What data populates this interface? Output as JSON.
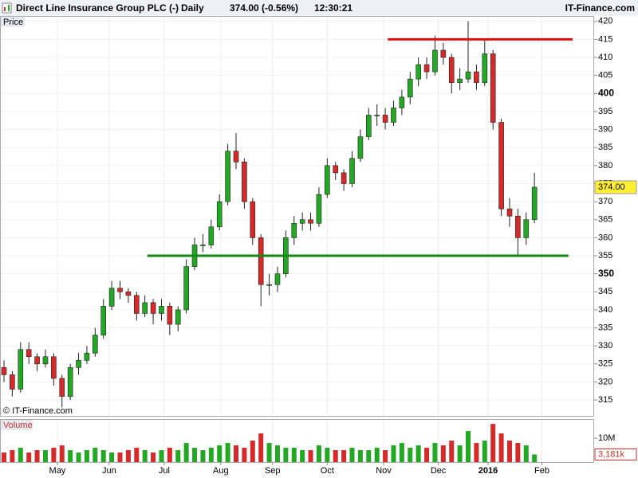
{
  "chart_data": {
    "type": "candlestick",
    "title": "Direct Line Insurance Group PLC (-)",
    "period": "Daily",
    "quote": "374.00 (-0.56%)",
    "time": "12:30:21",
    "brand": "IT-Finance.com",
    "watermark": "© IT-Finance.com",
    "price_label": "Price",
    "volume_label": "Volume",
    "up_color": "#22a822",
    "down_color": "#d42a2a",
    "x": [
      0,
      1,
      2,
      3,
      4,
      5,
      6,
      7,
      8,
      9,
      10,
      11,
      12,
      13,
      14,
      15,
      16,
      17,
      18,
      19,
      20,
      21,
      22,
      23,
      24,
      25,
      26,
      27,
      28,
      29,
      30,
      31,
      32,
      33,
      34,
      35,
      36,
      37,
      38,
      39,
      40,
      41,
      42,
      43,
      44,
      45,
      46,
      47,
      48,
      49,
      50,
      51,
      52,
      53,
      54,
      55,
      56,
      57,
      58,
      59,
      60,
      61,
      62,
      63,
      64
    ],
    "open": [
      324,
      322,
      318,
      329,
      327,
      325,
      327,
      321,
      316,
      324,
      326,
      328,
      333,
      341,
      346,
      345,
      344,
      339,
      342,
      339,
      341,
      336,
      340,
      352,
      358,
      358,
      363,
      370,
      384,
      381,
      370,
      360,
      347,
      347,
      350,
      360,
      364,
      365,
      364,
      372,
      380,
      378,
      375,
      382,
      388,
      394,
      394,
      392,
      396,
      399,
      404,
      408,
      406,
      412,
      410,
      403,
      404,
      406,
      403,
      411,
      392,
      368,
      366,
      360,
      365
    ],
    "high": [
      326,
      323,
      331,
      331,
      328,
      329,
      328,
      322,
      325,
      328,
      330,
      335,
      343,
      348,
      348,
      346,
      345,
      344,
      343,
      343,
      342,
      341,
      354,
      360,
      361,
      365,
      372,
      386,
      389,
      382,
      371,
      361,
      350,
      352,
      362,
      366,
      367,
      367,
      374,
      382,
      381,
      379,
      384,
      390,
      396,
      397,
      396,
      398,
      401,
      406,
      410,
      410,
      416,
      414,
      411,
      407,
      420,
      408,
      415,
      412,
      393,
      371,
      368,
      367,
      378
    ],
    "low": [
      320,
      316,
      317,
      325,
      323,
      324,
      319,
      313,
      315,
      322,
      325,
      327,
      332,
      340,
      343,
      342,
      337,
      338,
      336,
      337,
      333,
      334,
      339,
      351,
      356,
      357,
      362,
      369,
      379,
      368,
      358,
      341,
      344,
      345,
      349,
      358,
      362,
      362,
      363,
      371,
      376,
      373,
      374,
      381,
      387,
      391,
      390,
      391,
      394,
      397,
      402,
      404,
      405,
      408,
      400,
      401,
      403,
      401,
      402,
      390,
      366,
      363,
      355,
      358,
      364
    ],
    "close": [
      322,
      318,
      329,
      327,
      325,
      327,
      321,
      316,
      324,
      326,
      328,
      333,
      341,
      346,
      345,
      344,
      339,
      342,
      339,
      341,
      336,
      340,
      352,
      358,
      358,
      363,
      370,
      384,
      381,
      370,
      360,
      347,
      347,
      350,
      360,
      364,
      365,
      364,
      372,
      380,
      378,
      375,
      382,
      388,
      394,
      394,
      392,
      396,
      399,
      404,
      408,
      406,
      412,
      410,
      403,
      404,
      406,
      403,
      411,
      392,
      368,
      366,
      360,
      365,
      374
    ],
    "volume": [
      4,
      5,
      6,
      4,
      5,
      5,
      6,
      7,
      5,
      4,
      5,
      6,
      5,
      4,
      4,
      5,
      6,
      5,
      4,
      5,
      6,
      5,
      8,
      6,
      5,
      6,
      7,
      8,
      7,
      6,
      9,
      12,
      8,
      7,
      6,
      6,
      5,
      5,
      7,
      6,
      5,
      5,
      6,
      5,
      5,
      6,
      5,
      7,
      8,
      6,
      7,
      6,
      8,
      7,
      9,
      7,
      13,
      8,
      9,
      16,
      12,
      9,
      8,
      7,
      3.181
    ],
    "last": {
      "value": 374,
      "label": "374.00"
    },
    "last_volume": {
      "value": 3.181,
      "label": "3,181k"
    },
    "xlim": [
      -0.48,
      71.2
    ],
    "xticks": [
      {
        "value": 6.44,
        "label": "May"
      },
      {
        "value": 12.69,
        "label": "Jun"
      },
      {
        "value": 19.33,
        "label": "Jul"
      },
      {
        "value": 26.15,
        "label": "Aug"
      },
      {
        "value": 32.4,
        "label": "Sep"
      },
      {
        "value": 39.0,
        "label": "Oct"
      },
      {
        "value": 45.8,
        "label": "Nov"
      },
      {
        "value": 52.4,
        "label": "Dec"
      },
      {
        "value": 58.4,
        "label": "2016"
      },
      {
        "value": 64.9,
        "label": "Feb"
      }
    ],
    "ylim": [
      310.6,
      421.5
    ],
    "yticks": [
      315,
      320,
      325,
      330,
      335,
      340,
      345,
      350,
      355,
      360,
      365,
      370,
      375,
      380,
      385,
      390,
      395,
      400,
      405,
      410,
      415,
      420
    ],
    "bold_yticks": [
      350,
      400
    ],
    "vlim": [
      0,
      17.7
    ],
    "vticks": [
      {
        "value": 10,
        "label": "10M"
      }
    ],
    "lines": [
      {
        "value": 415,
        "color": "#e01010",
        "x": [
          46.3,
          68.6
        ]
      },
      {
        "value": 355,
        "color": "#118811",
        "x": [
          17.3,
          68.1
        ]
      }
    ]
  }
}
